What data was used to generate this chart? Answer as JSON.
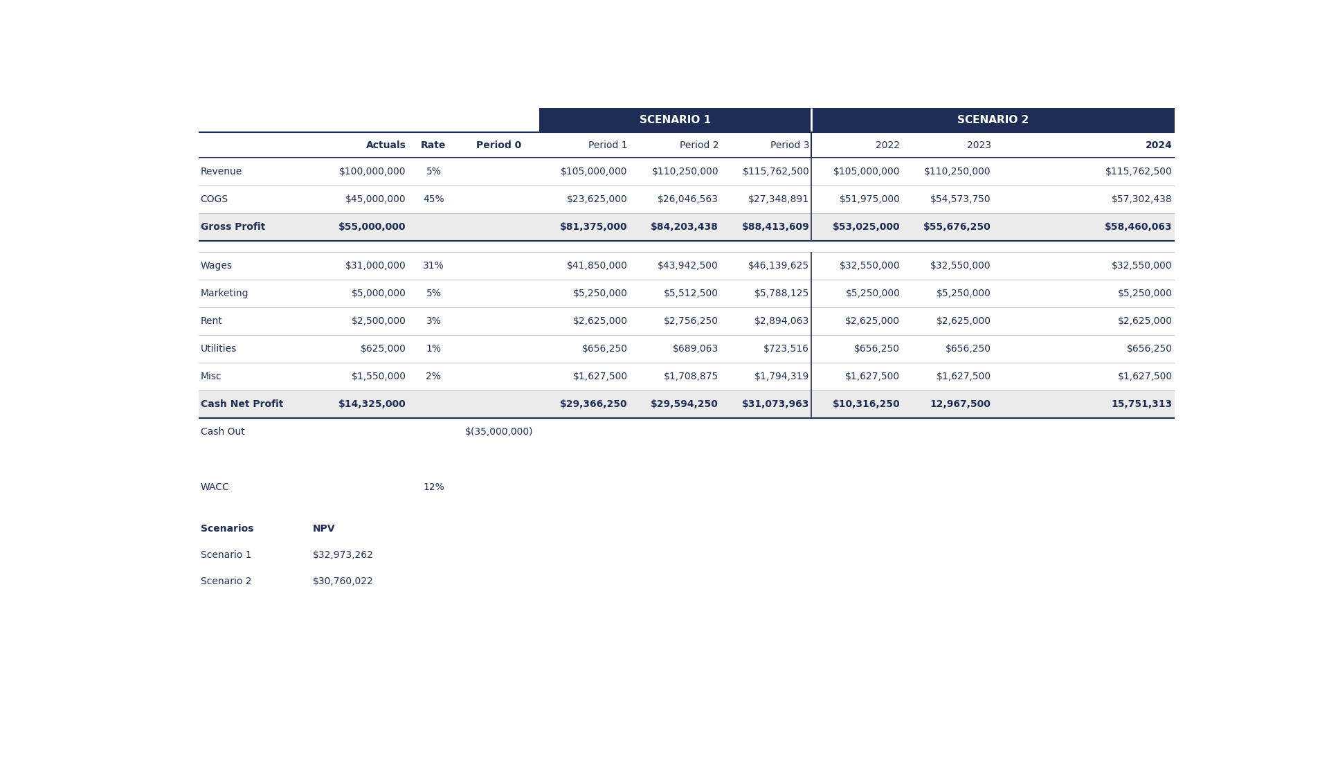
{
  "background_color": "#ffffff",
  "header_bg_color": "#1e2d55",
  "header_text_color": "#ffffff",
  "col_header_text_color": "#1e2d55",
  "bold_row_bg_color": "#ebebeb",
  "table_text_color": "#1e2d55",
  "divider_color": "#1e2d55",
  "light_divider_color": "#c0c8d8",
  "col_headers": [
    "",
    "Actuals",
    "Rate",
    "Period 0",
    "Period 1",
    "Period 2",
    "Period 3",
    "2022",
    "2023",
    "2024"
  ],
  "rows": [
    {
      "label": "Revenue",
      "actuals": "$100,000,000",
      "rate": "5%",
      "period0": "",
      "p1": "$105,000,000",
      "p2": "$110,250,000",
      "p3": "$115,762,500",
      "s2_2022": "$105,000,000",
      "s2_2023": "$110,250,000",
      "s2_2024": "$115,762,500",
      "bold": false,
      "spacer": false,
      "cash_out": false
    },
    {
      "label": "COGS",
      "actuals": "$45,000,000",
      "rate": "45%",
      "period0": "",
      "p1": "$23,625,000",
      "p2": "$26,046,563",
      "p3": "$27,348,891",
      "s2_2022": "$51,975,000",
      "s2_2023": "$54,573,750",
      "s2_2024": "$57,302,438",
      "bold": false,
      "spacer": false,
      "cash_out": false
    },
    {
      "label": "Gross Profit",
      "actuals": "$55,000,000",
      "rate": "",
      "period0": "",
      "p1": "$81,375,000",
      "p2": "$84,203,438",
      "p3": "$88,413,609",
      "s2_2022": "$53,025,000",
      "s2_2023": "$55,676,250",
      "s2_2024": "$58,460,063",
      "bold": true,
      "spacer": false,
      "cash_out": false
    },
    {
      "label": "",
      "actuals": "",
      "rate": "",
      "period0": "",
      "p1": "",
      "p2": "",
      "p3": "",
      "s2_2022": "",
      "s2_2023": "",
      "s2_2024": "",
      "bold": false,
      "spacer": true,
      "cash_out": false
    },
    {
      "label": "Wages",
      "actuals": "$31,000,000",
      "rate": "31%",
      "period0": "",
      "p1": "$41,850,000",
      "p2": "$43,942,500",
      "p3": "$46,139,625",
      "s2_2022": "$32,550,000",
      "s2_2023": "$32,550,000",
      "s2_2024": "$32,550,000",
      "bold": false,
      "spacer": false,
      "cash_out": false
    },
    {
      "label": "Marketing",
      "actuals": "$5,000,000",
      "rate": "5%",
      "period0": "",
      "p1": "$5,250,000",
      "p2": "$5,512,500",
      "p3": "$5,788,125",
      "s2_2022": "$5,250,000",
      "s2_2023": "$5,250,000",
      "s2_2024": "$5,250,000",
      "bold": false,
      "spacer": false,
      "cash_out": false
    },
    {
      "label": "Rent",
      "actuals": "$2,500,000",
      "rate": "3%",
      "period0": "",
      "p1": "$2,625,000",
      "p2": "$2,756,250",
      "p3": "$2,894,063",
      "s2_2022": "$2,625,000",
      "s2_2023": "$2,625,000",
      "s2_2024": "$2,625,000",
      "bold": false,
      "spacer": false,
      "cash_out": false
    },
    {
      "label": "Utilities",
      "actuals": "$625,000",
      "rate": "1%",
      "period0": "",
      "p1": "$656,250",
      "p2": "$689,063",
      "p3": "$723,516",
      "s2_2022": "$656,250",
      "s2_2023": "$656,250",
      "s2_2024": "$656,250",
      "bold": false,
      "spacer": false,
      "cash_out": false
    },
    {
      "label": "Misc",
      "actuals": "$1,550,000",
      "rate": "2%",
      "period0": "",
      "p1": "$1,627,500",
      "p2": "$1,708,875",
      "p3": "$1,794,319",
      "s2_2022": "$1,627,500",
      "s2_2023": "$1,627,500",
      "s2_2024": "$1,627,500",
      "bold": false,
      "spacer": false,
      "cash_out": false
    },
    {
      "label": "Cash Net Profit",
      "actuals": "$14,325,000",
      "rate": "",
      "period0": "",
      "p1": "$29,366,250",
      "p2": "$29,594,250",
      "p3": "$31,073,963",
      "s2_2022": "$10,316,250",
      "s2_2023": "12,967,500",
      "s2_2024": "15,751,313",
      "bold": true,
      "spacer": false,
      "cash_out": false
    },
    {
      "label": "Cash Out",
      "actuals": "",
      "rate": "",
      "period0": "$(35,000,000)",
      "p1": "",
      "p2": "",
      "p3": "",
      "s2_2022": "",
      "s2_2023": "",
      "s2_2024": "",
      "bold": false,
      "spacer": false,
      "cash_out": true
    }
  ],
  "wacc_label": "WACC",
  "wacc_value": "12%",
  "scenarios_header": "Scenarios",
  "npv_header": "NPV",
  "scenario_rows": [
    {
      "label": "Scenario 1",
      "npv": "$32,973,262"
    },
    {
      "label": "Scenario 2",
      "npv": "$30,760,022"
    }
  ],
  "scenario1_label": "SCENARIO 1",
  "scenario2_label": "SCENARIO 2",
  "title_fontsize": 11,
  "header_fontsize": 10,
  "cell_fontsize": 10
}
